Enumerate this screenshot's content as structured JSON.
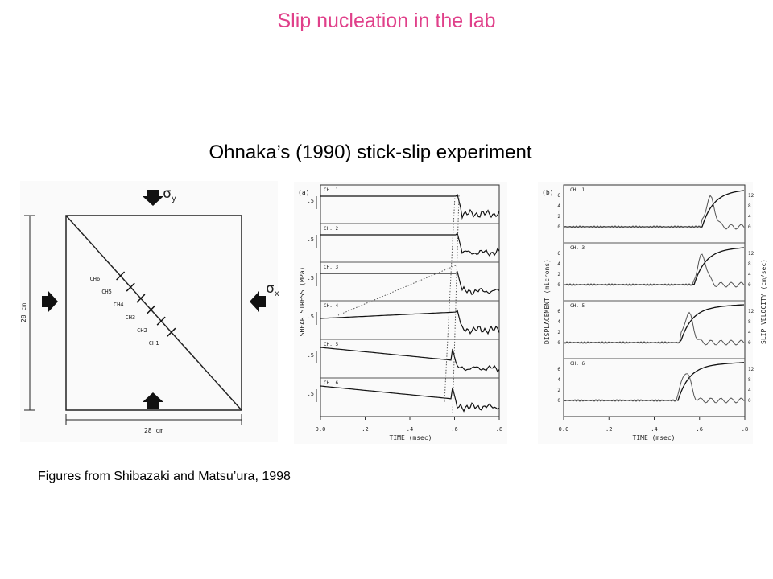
{
  "title": "Slip nucleation in the lab",
  "subtitle": "Ohnaka’s (1990) stick-slip experiment",
  "caption": "Figures from Shibazaki and Matsu’ura, 1998",
  "figure_left": {
    "sigma_y": "σ",
    "sigma_y_sub": "y",
    "sigma_x": "σ",
    "sigma_x_sub": "x",
    "size_vertical": "28 cm",
    "size_horizontal": "28 cm",
    "channels": [
      "CH6",
      "CH5",
      "CH4",
      "CH3",
      "CH2",
      "CH1"
    ]
  },
  "figure_a": {
    "panel": "(a)",
    "y_label": "SHEAR STRESS (MPa)",
    "x_label": "TIME (msec)",
    "x_ticks": [
      "0.0",
      ".2",
      ".4",
      ".6",
      ".8"
    ],
    "scale": ".5",
    "channels": [
      "CH. 1",
      "CH. 2",
      "CH. 3",
      "CH. 4",
      "CH. 5",
      "CH. 6"
    ]
  },
  "figure_b": {
    "panel": "(b)",
    "y_label": "DISPLACEMENT (microns)",
    "y2_label": "SLIP VELOCITY (cm/sec)",
    "x_label": "TIME (msec)",
    "x_ticks": [
      "0.0",
      ".2",
      ".4",
      ".6",
      ".8"
    ],
    "left_ticks": [
      "0",
      "2",
      "4",
      "6"
    ],
    "right_ticks": [
      "0",
      "4",
      "8",
      "12"
    ],
    "channels": [
      "CH. 1",
      "CH. 3",
      "CH. 5",
      "CH. 6"
    ]
  }
}
